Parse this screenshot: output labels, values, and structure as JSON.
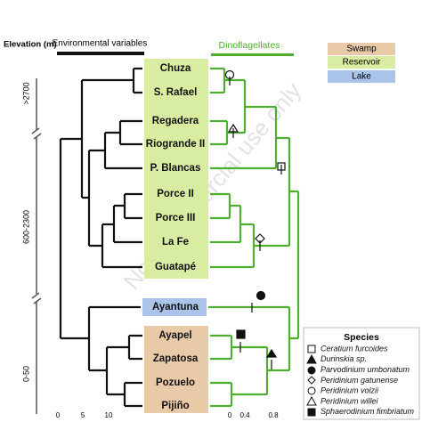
{
  "elevation_label": "Elevation (m)",
  "elevation_ranges": [
    ">2700",
    "600-2300",
    "0-50"
  ],
  "left_title": "Environmental variables",
  "right_title": "Dinoflagellates",
  "watermark": "Non-commercial use only",
  "habitats": [
    "Swamp",
    "Reservoir",
    "Lake"
  ],
  "sites": [
    "Chuza",
    "S. Rafael",
    "Regadera",
    "Riogrande II",
    "P. Blancas",
    "Porce II",
    "Porce III",
    "La Fe",
    "Guatapé",
    "Ayantuna",
    "Ayapel",
    "Zapatosa",
    "Pozuelo",
    "Pijiño"
  ],
  "species_title": "Species",
  "species": [
    "Ceratium furcoides",
    "Durinskia sp.",
    "Parvodinium umbonatum",
    "Peridinium gatunense",
    "Peridinium volzii",
    "Peridinium willei",
    "Sphaerodinium fimbriatum"
  ],
  "left_scale": [
    0,
    5,
    10
  ],
  "right_scale": [
    0,
    0.4,
    0.8
  ]
}
